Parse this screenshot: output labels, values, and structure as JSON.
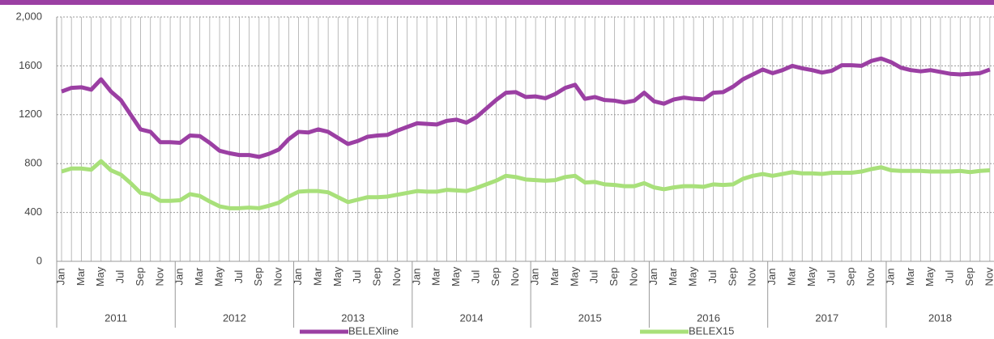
{
  "chart_data": {
    "type": "line",
    "categories": [
      "Jan",
      null,
      "Mar",
      null,
      "May",
      null,
      "Jul",
      null,
      "Sep",
      null,
      "Nov",
      null,
      "Jan",
      null,
      "Mar",
      null,
      "May",
      null,
      "Jul",
      null,
      "Sep",
      null,
      "Nov",
      null,
      "Jan",
      null,
      "Mar",
      null,
      "May",
      null,
      "Jul",
      null,
      "Sep",
      null,
      "Nov",
      null,
      "Jan",
      null,
      "Mar",
      null,
      "May",
      null,
      "Jul",
      null,
      "Sep",
      null,
      "Nov",
      null,
      "Jan",
      null,
      "Mar",
      null,
      "May",
      null,
      "Jul",
      null,
      "Sep",
      null,
      "Nov",
      null,
      "Jan",
      null,
      "Mar",
      null,
      "May",
      null,
      "Jul",
      null,
      "Sep",
      null,
      "Nov",
      null,
      "Jan",
      null,
      "Mar",
      null,
      "May",
      null,
      "Jul",
      null,
      "Sep",
      null,
      "Nov",
      null,
      "Jan",
      null,
      "Mar",
      null,
      "May",
      null,
      "Jul",
      null,
      "Sep",
      null,
      "Nov"
    ],
    "years": [
      "2011",
      "2012",
      "2013",
      "2014",
      "2015",
      "2016",
      "2017",
      "2018"
    ],
    "series": [
      {
        "name": "BELEXline",
        "color": "#9b3fa3",
        "values": [
          1390,
          1420,
          1425,
          1405,
          1490,
          1390,
          1320,
          1200,
          1080,
          1060,
          975,
          975,
          970,
          1030,
          1025,
          970,
          905,
          885,
          870,
          870,
          855,
          880,
          915,
          1000,
          1060,
          1055,
          1080,
          1060,
          1010,
          960,
          985,
          1020,
          1030,
          1035,
          1070,
          1100,
          1130,
          1125,
          1120,
          1150,
          1160,
          1135,
          1180,
          1250,
          1320,
          1380,
          1385,
          1345,
          1350,
          1335,
          1370,
          1420,
          1445,
          1330,
          1345,
          1320,
          1315,
          1300,
          1315,
          1380,
          1310,
          1290,
          1325,
          1340,
          1330,
          1325,
          1380,
          1385,
          1430,
          1490,
          1530,
          1570,
          1540,
          1565,
          1600,
          1580,
          1565,
          1545,
          1560,
          1605,
          1605,
          1600,
          1640,
          1660,
          1630,
          1585,
          1565,
          1555,
          1565,
          1550,
          1535,
          1530,
          1535,
          1540,
          1570
        ]
      },
      {
        "name": "BELEX15",
        "color": "#a8e07a",
        "values": [
          735,
          760,
          760,
          750,
          820,
          745,
          710,
          640,
          560,
          545,
          495,
          495,
          500,
          550,
          535,
          490,
          450,
          435,
          435,
          440,
          435,
          455,
          480,
          530,
          570,
          575,
          575,
          565,
          525,
          485,
          505,
          525,
          525,
          530,
          545,
          560,
          575,
          570,
          570,
          585,
          580,
          575,
          600,
          630,
          660,
          700,
          690,
          670,
          665,
          660,
          665,
          690,
          700,
          645,
          650,
          630,
          625,
          615,
          615,
          640,
          605,
          590,
          605,
          615,
          615,
          610,
          630,
          625,
          630,
          675,
          700,
          715,
          700,
          715,
          730,
          720,
          720,
          715,
          725,
          725,
          725,
          735,
          755,
          770,
          745,
          740,
          740,
          740,
          735,
          735,
          735,
          740,
          730,
          740,
          745
        ]
      }
    ],
    "ylim": [
      0,
      2000
    ],
    "yticks": [
      0,
      400,
      800,
      1200,
      1600,
      {
        "value": 2000,
        "label": "2,000"
      }
    ],
    "grid": true
  }
}
